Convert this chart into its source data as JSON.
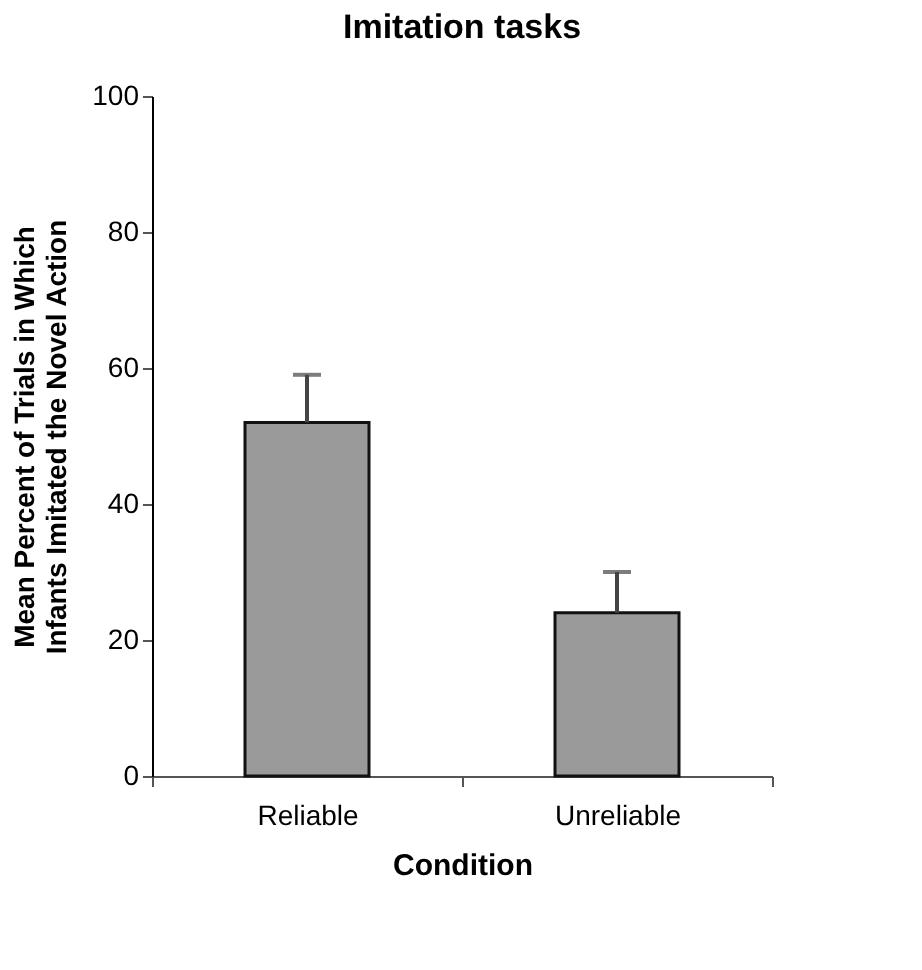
{
  "chart_data": {
    "type": "bar",
    "title": "Imitation tasks",
    "xlabel": "Condition",
    "ylabel": "Mean Percent of Trials in Which\nInfants Imitated the Novel Action",
    "categories": [
      "Reliable",
      "Unreliable"
    ],
    "series": [
      {
        "color": "#9a9a9a",
        "values": [
          52,
          24
        ],
        "errors": [
          [
            52,
            59
          ],
          [
            24,
            30
          ]
        ]
      }
    ],
    "ylim": [
      0,
      100
    ],
    "yticks": [
      0,
      20,
      40,
      60,
      80,
      100
    ],
    "grid": false
  }
}
